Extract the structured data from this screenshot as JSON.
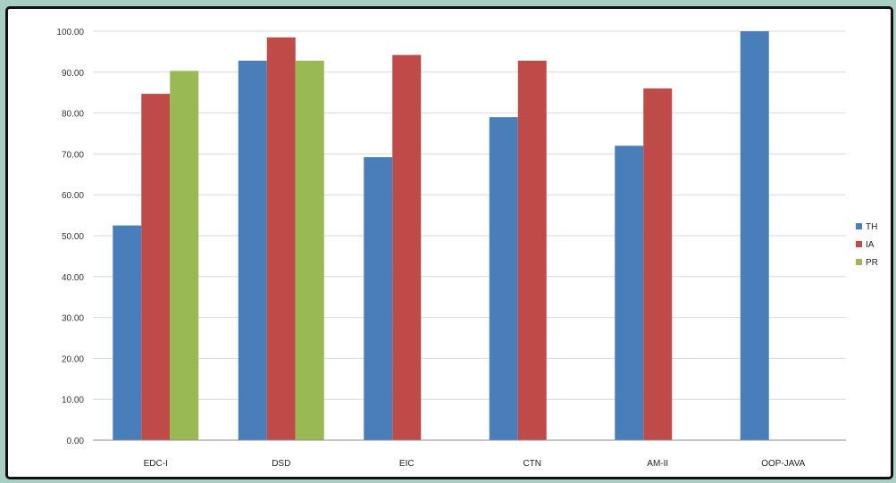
{
  "chart_data": {
    "type": "bar",
    "title": "",
    "xlabel": "",
    "ylabel": "",
    "categories": [
      "EDC-I",
      "DSD",
      "EIC",
      "CTN",
      "AM-II",
      "OOP-JAVA"
    ],
    "series": [
      {
        "name": "TH",
        "color": "#4a7ebb",
        "values": [
          52.5,
          92.8,
          69.2,
          79.0,
          72.0,
          100.0
        ]
      },
      {
        "name": "IA",
        "color": "#be4b48",
        "values": [
          84.7,
          98.5,
          94.2,
          92.8,
          86.0,
          null
        ]
      },
      {
        "name": "PR",
        "color": "#98b954",
        "values": [
          90.3,
          92.8,
          null,
          null,
          null,
          null
        ]
      }
    ],
    "ylim": [
      0,
      100
    ],
    "yticks": [
      "0.00",
      "10.00",
      "20.00",
      "30.00",
      "40.00",
      "50.00",
      "60.00",
      "70.00",
      "80.00",
      "90.00",
      "100.00"
    ],
    "grid": true,
    "legend_position": "right"
  }
}
